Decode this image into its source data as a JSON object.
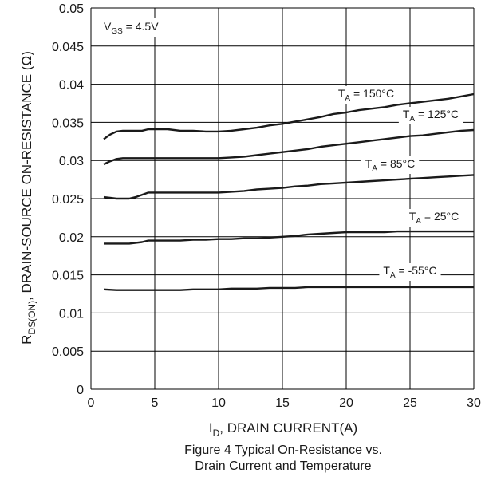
{
  "chart_data": {
    "type": "line",
    "title": "",
    "xlabel_main": "I",
    "xlabel_sub": "D",
    "xlabel_rest": ", DRAIN CURRENT(A)",
    "ylabel_main": "R",
    "ylabel_sub": "DS(ON)",
    "ylabel_rest": ",  DRAIN-SOURCE ON-RESISTANCE (Ω)",
    "xlim": [
      0,
      30
    ],
    "ylim": [
      0,
      0.05
    ],
    "x_ticks": [
      "0",
      "5",
      "10",
      "15",
      "20",
      "25",
      "30"
    ],
    "y_ticks": [
      "0",
      "0.005",
      "0.01",
      "0.015",
      "0.02",
      "0.025",
      "0.03",
      "0.035",
      "0.04",
      "0.045",
      "0.05"
    ],
    "grid": true,
    "annotation": {
      "main": "V",
      "sub": "GS",
      "rest": " = 4.5V"
    },
    "series": [
      {
        "main": "T",
        "sub": "A",
        "rest": " = 150°C",
        "x": [
          1,
          1.5,
          2,
          2.5,
          3,
          4,
          4.5,
          5,
          6,
          7,
          8,
          9,
          10,
          11,
          12,
          13,
          14,
          15,
          16,
          17,
          18,
          19,
          20,
          21,
          22,
          23,
          24,
          25,
          26,
          27,
          28,
          29,
          30
        ],
        "y": [
          0.0328,
          0.0334,
          0.0338,
          0.0339,
          0.0339,
          0.0339,
          0.0341,
          0.0341,
          0.0341,
          0.0339,
          0.0339,
          0.0338,
          0.0338,
          0.0339,
          0.0341,
          0.0343,
          0.0346,
          0.0348,
          0.0351,
          0.0354,
          0.0357,
          0.0361,
          0.0363,
          0.0366,
          0.0368,
          0.037,
          0.0373,
          0.0375,
          0.0377,
          0.0379,
          0.0381,
          0.0384,
          0.0387
        ]
      },
      {
        "main": "T",
        "sub": "A",
        "rest": " = 125°C",
        "x": [
          1,
          1.5,
          2,
          2.5,
          3,
          4,
          5,
          6,
          7,
          8,
          9,
          10,
          11,
          12,
          13,
          14,
          15,
          16,
          17,
          18,
          19,
          20,
          21,
          22,
          23,
          24,
          25,
          26,
          27,
          28,
          29,
          30
        ],
        "y": [
          0.0295,
          0.0299,
          0.0302,
          0.0303,
          0.0303,
          0.0303,
          0.0303,
          0.0303,
          0.0303,
          0.0303,
          0.0303,
          0.0303,
          0.0304,
          0.0305,
          0.0307,
          0.0309,
          0.0311,
          0.0313,
          0.0315,
          0.0318,
          0.032,
          0.0322,
          0.0324,
          0.0326,
          0.0328,
          0.033,
          0.0332,
          0.0333,
          0.0335,
          0.0337,
          0.0339,
          0.034
        ]
      },
      {
        "main": "T",
        "sub": "A",
        "rest": " = 85°C",
        "x": [
          1,
          1.5,
          2,
          3,
          3.5,
          4,
          4.5,
          5,
          6,
          7,
          8,
          9,
          10,
          11,
          12,
          13,
          14,
          15,
          16,
          17,
          18,
          19,
          20,
          21,
          22,
          23,
          24,
          25,
          26,
          27,
          28,
          29,
          30
        ],
        "y": [
          0.0252,
          0.0251,
          0.025,
          0.025,
          0.0252,
          0.0255,
          0.0258,
          0.0258,
          0.0258,
          0.0258,
          0.0258,
          0.0258,
          0.0258,
          0.0259,
          0.026,
          0.0262,
          0.0263,
          0.0264,
          0.0266,
          0.0267,
          0.0269,
          0.027,
          0.0271,
          0.0272,
          0.0273,
          0.0274,
          0.0275,
          0.0276,
          0.0277,
          0.0278,
          0.0279,
          0.028,
          0.0281
        ]
      },
      {
        "main": "T",
        "sub": "A",
        "rest": " = 25°C",
        "x": [
          1,
          2,
          3,
          4,
          4.5,
          5,
          6,
          7,
          8,
          9,
          10,
          11,
          12,
          13,
          14,
          15,
          16,
          17,
          18,
          19,
          20,
          21,
          22,
          23,
          24,
          25,
          26,
          27,
          28,
          29,
          30
        ],
        "y": [
          0.0191,
          0.0191,
          0.0191,
          0.0193,
          0.0195,
          0.0195,
          0.0195,
          0.0195,
          0.0196,
          0.0196,
          0.0197,
          0.0197,
          0.0198,
          0.0198,
          0.0199,
          0.02,
          0.0201,
          0.0203,
          0.0204,
          0.0205,
          0.0206,
          0.0206,
          0.0206,
          0.0206,
          0.0207,
          0.0207,
          0.0207,
          0.0207,
          0.0207,
          0.0207,
          0.0207
        ]
      },
      {
        "main": "T",
        "sub": "A",
        "rest": " = -55°C",
        "x": [
          1,
          2,
          3,
          4,
          5,
          6,
          7,
          8,
          9,
          10,
          11,
          12,
          13,
          14,
          15,
          16,
          17,
          18,
          19,
          20,
          21,
          22,
          23,
          24,
          25,
          26,
          27,
          28,
          29,
          30
        ],
        "y": [
          0.0131,
          0.013,
          0.013,
          0.013,
          0.013,
          0.013,
          0.013,
          0.0131,
          0.0131,
          0.0131,
          0.0132,
          0.0132,
          0.0132,
          0.0133,
          0.0133,
          0.0133,
          0.0134,
          0.0134,
          0.0134,
          0.0134,
          0.0134,
          0.0134,
          0.0134,
          0.0134,
          0.0134,
          0.0134,
          0.0134,
          0.0134,
          0.0134,
          0.0134
        ]
      }
    ],
    "caption_line1": "Figure 4  Typical On-Resistance vs.",
    "caption_line2": "Drain Current and Temperature"
  }
}
